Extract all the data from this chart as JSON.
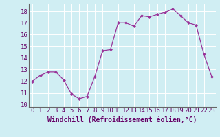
{
  "x": [
    0,
    1,
    2,
    3,
    4,
    5,
    6,
    7,
    8,
    9,
    10,
    11,
    12,
    13,
    14,
    15,
    16,
    17,
    18,
    19,
    20,
    21,
    22,
    23
  ],
  "y": [
    12.0,
    12.5,
    12.8,
    12.8,
    12.1,
    10.9,
    10.5,
    10.7,
    12.4,
    14.6,
    14.7,
    17.0,
    17.0,
    16.7,
    17.6,
    17.5,
    17.7,
    17.9,
    18.2,
    17.6,
    17.0,
    16.8,
    14.3,
    12.4
  ],
  "line_color": "#993399",
  "marker": "D",
  "marker_size": 2.0,
  "xlabel": "Windchill (Refroidissement éolien,°C)",
  "xlabel_fontsize": 7,
  "ylabel_ticks": [
    10,
    11,
    12,
    13,
    14,
    15,
    16,
    17,
    18
  ],
  "ylim": [
    9.8,
    18.6
  ],
  "xlim": [
    -0.5,
    23.5
  ],
  "bg_color": "#d0eef3",
  "grid_color": "#b8dde6",
  "tick_fontsize": 6.5,
  "border_color": "#7a5c7a"
}
